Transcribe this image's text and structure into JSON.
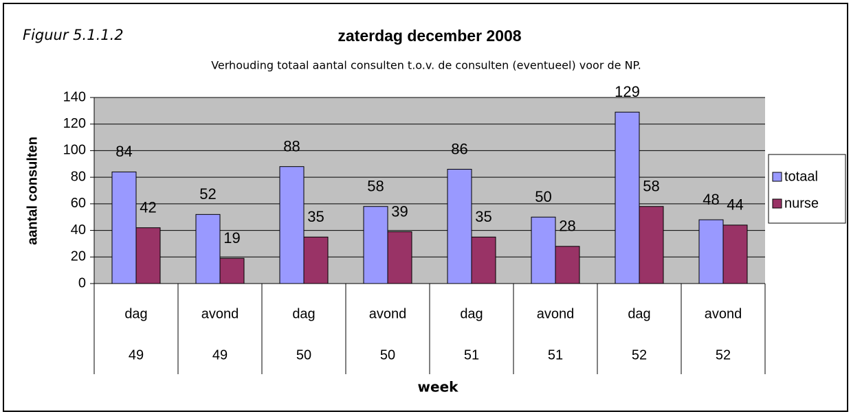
{
  "chart_data": {
    "type": "bar",
    "figure_label": "Figuur 5.1.1.2",
    "title": "zaterdag december 2008",
    "subtitle": "Verhouding totaal aantal consulten t.o.v. de consulten (eventueel) voor de NP.",
    "y_label": "aantal consulten",
    "x_label": "week",
    "categories": [
      "dag",
      "avond",
      "dag",
      "avond",
      "dag",
      "avond",
      "dag",
      "avond"
    ],
    "category_groups": [
      "49",
      "49",
      "50",
      "50",
      "51",
      "51",
      "52",
      "52"
    ],
    "series": [
      {
        "name": "totaal",
        "color": "#9999ff",
        "values": [
          84,
          52,
          88,
          58,
          86,
          50,
          129,
          48
        ]
      },
      {
        "name": "nurse",
        "color": "#993366",
        "values": [
          42,
          19,
          35,
          39,
          35,
          28,
          58,
          44
        ]
      }
    ],
    "ylim": [
      0,
      140
    ],
    "yticks": [
      0,
      20,
      40,
      60,
      80,
      100,
      120,
      140
    ],
    "grid": true,
    "legend": "right",
    "plot_background": "#c0c0c0"
  }
}
